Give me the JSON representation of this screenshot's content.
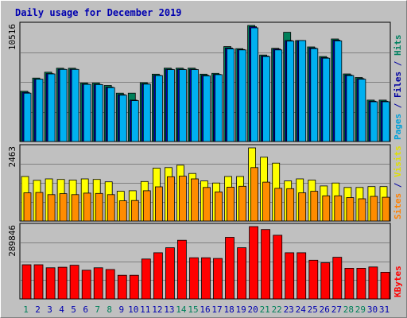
{
  "chart_data": {
    "title": "Daily usage for December 2019",
    "type": "bar",
    "categories": [
      "1",
      "2",
      "3",
      "4",
      "5",
      "6",
      "7",
      "8",
      "9",
      "10",
      "11",
      "12",
      "13",
      "14",
      "15",
      "16",
      "17",
      "18",
      "19",
      "20",
      "21",
      "22",
      "23",
      "24",
      "25",
      "26",
      "27",
      "28",
      "29",
      "30",
      "31"
    ],
    "weekend_days": [
      1,
      7,
      8,
      14,
      15,
      21,
      22,
      28,
      29
    ],
    "panels": [
      {
        "id": "requests",
        "ymax_label": "10516",
        "ymax": 10516,
        "right_labels": [
          {
            "text": "Pages",
            "color": "#00a0d8"
          },
          {
            "text": " / ",
            "color": "#0000a0"
          },
          {
            "text": "Files",
            "color": "#0000a0"
          },
          {
            "text": " / ",
            "color": "#0000a0"
          },
          {
            "text": "Hits",
            "color": "#008060"
          }
        ],
        "series": [
          {
            "name": "Hits",
            "color": "#00805a",
            "values": [
              4550,
              5750,
              6280,
              6640,
              6640,
              5300,
              5300,
              5080,
              4380,
              4380,
              5330,
              6100,
              6650,
              6650,
              6650,
              6100,
              6170,
              8600,
              8410,
              10516,
              7840,
              8440,
              9900,
              9150,
              8570,
              7700,
              9290,
              6120,
              5800,
              3750,
              3750
            ]
          },
          {
            "name": "Files",
            "color": "#0000b0",
            "values": [
              4450,
              5650,
              6150,
              6550,
              6550,
              5200,
              5180,
              4930,
              4250,
              3750,
              5230,
              6000,
              6550,
              6550,
              6550,
              6000,
              6080,
              8470,
              8330,
              10400,
              7750,
              8380,
              9150,
              9150,
              8480,
              7600,
              9180,
              6030,
              5700,
              3650,
              3650
            ]
          },
          {
            "name": "Pages",
            "color": "#00b0f0",
            "values": [
              4380,
              5650,
              6120,
              6530,
              6530,
              5180,
              5160,
              4880,
              4200,
              3700,
              5200,
              5980,
              6520,
              6520,
              6520,
              5950,
              6060,
              8400,
              8300,
              10300,
              7700,
              8300,
              9100,
              9150,
              8420,
              7550,
              9120,
              5980,
              5650,
              3600,
              3600
            ]
          }
        ]
      },
      {
        "id": "visits",
        "ymax_label": "2463",
        "ymax": 2463,
        "right_labels": [
          {
            "text": "Sites",
            "color": "#ff8000"
          },
          {
            "text": " / ",
            "color": "#0000a0"
          },
          {
            "text": "Visits",
            "color": "#e0e000"
          }
        ],
        "series": [
          {
            "name": "Visits",
            "color": "#ffff00",
            "values": [
              1500,
              1370,
              1420,
              1400,
              1380,
              1420,
              1400,
              1320,
              1000,
              1020,
              1330,
              1780,
              1800,
              1880,
              1600,
              1350,
              1280,
              1500,
              1500,
              2463,
              2150,
              1950,
              1350,
              1420,
              1380,
              1180,
              1280,
              1130,
              1130,
              1160,
              1160
            ]
          },
          {
            "name": "Sites",
            "color": "#ff8c00",
            "values": [
              950,
              960,
              890,
              920,
              890,
              940,
              930,
              890,
              680,
              690,
              1020,
              1150,
              1490,
              1510,
              1420,
              1130,
              980,
              1140,
              1170,
              1800,
              1310,
              1100,
              1090,
              950,
              1000,
              850,
              850,
              790,
              750,
              830,
              800
            ]
          }
        ]
      },
      {
        "id": "kbytes",
        "ymax_label": "289846",
        "ymax": 289846,
        "right_labels": [
          {
            "text": "KBytes",
            "color": "#ff0000"
          }
        ],
        "series": [
          {
            "name": "KBytes",
            "color": "#ff0000",
            "values": [
              137000,
              137000,
              125000,
              127000,
              135000,
              115000,
              125000,
              118000,
              95000,
              95000,
              160000,
              185000,
              205000,
              235000,
              165000,
              165000,
              162000,
              247000,
              205000,
              289846,
              278000,
              255000,
              185000,
              185000,
              155000,
              145000,
              167000,
              123000,
              123000,
              128000,
              107000
            ]
          }
        ]
      }
    ]
  }
}
